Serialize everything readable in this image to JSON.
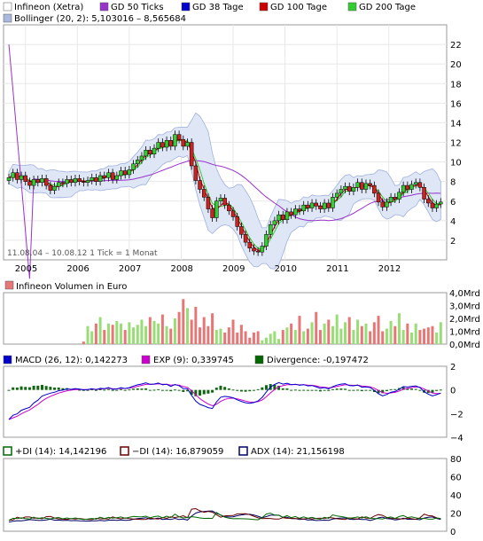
{
  "legend_main": [
    {
      "label": "Infineon (Xetra)",
      "color": "#ffffff"
    },
    {
      "label": "GD 50 Ticks",
      "color": "#9933cc"
    },
    {
      "label": "GD 38 Tage",
      "color": "#0000cc"
    },
    {
      "label": "GD 100 Tage",
      "color": "#cc0000"
    },
    {
      "label": "GD 200 Tage",
      "color": "#33cc33"
    }
  ],
  "legend_bollinger": {
    "label": "Bollinger (20, 2): 5,103016 – 8,565684",
    "color": "#aab8dd"
  },
  "info_text": "11.08.04 – 10.08.12   1 Tick = 1 Monat",
  "chart_data": [
    {
      "type": "candlestick",
      "title": "Infineon (Xetra)",
      "ylim": [
        0,
        24
      ],
      "y_ticks": [
        "2",
        "4",
        "6",
        "8",
        "10",
        "12",
        "14",
        "16",
        "18",
        "20",
        "22"
      ],
      "x_ticks": [
        "2005",
        "2006",
        "2007",
        "2008",
        "2009",
        "2010",
        "2011",
        "2012"
      ],
      "close": [
        8.4,
        8.9,
        8.2,
        8.6,
        8.0,
        7.6,
        8.2,
        7.9,
        8.3,
        7.6,
        7.1,
        7.5,
        7.9,
        7.8,
        8.2,
        7.9,
        8.3,
        8.0,
        7.9,
        8.1,
        8.4,
        8.0,
        8.6,
        8.4,
        8.9,
        8.2,
        8.6,
        9.1,
        8.7,
        9.2,
        9.8,
        10.2,
        10.6,
        11.2,
        10.8,
        11.4,
        12.0,
        11.5,
        12.2,
        11.6,
        12.8,
        12.3,
        11.6,
        12.0,
        9.6,
        8.1,
        7.2,
        6.4,
        5.2,
        4.3,
        6.0,
        6.3,
        5.6,
        5.0,
        4.4,
        3.4,
        2.6,
        1.8,
        1.2,
        0.9,
        0.8,
        1.4,
        2.6,
        3.6,
        4.0,
        4.6,
        4.1,
        4.9,
        4.6,
        5.2,
        5.0,
        5.6,
        5.3,
        5.8,
        5.5,
        5.2,
        5.8,
        5.3,
        6.4,
        6.8,
        7.2,
        7.5,
        7.0,
        7.4,
        7.9,
        7.2,
        7.8,
        7.6,
        6.8,
        5.9,
        5.4,
        5.9,
        6.4,
        6.2,
        6.9,
        7.6,
        7.2,
        7.7,
        7.9,
        7.4,
        6.2,
        5.8,
        5.3,
        5.7,
        5.9
      ],
      "volume_ylim": [
        0,
        4
      ],
      "volume_ticks": [
        "0,0Mrd",
        "1,0Mrd",
        "2,0Mrd",
        "3,0Mrd",
        "4,0Mrd"
      ],
      "bollinger_upper": 8.565684,
      "bollinger_lower": 5.103016
    },
    {
      "type": "bar",
      "title": "Infineon Volumen in Euro",
      "ylim": [
        0,
        4
      ],
      "values": [
        0.0,
        0.0,
        0.0,
        0.0,
        0.0,
        0.0,
        0.0,
        0.0,
        0.0,
        0.0,
        0.0,
        0.0,
        0.0,
        0.0,
        0.0,
        0.0,
        0.0,
        0.0,
        0.2,
        1.4,
        1.0,
        1.6,
        2.1,
        1.1,
        1.6,
        1.5,
        1.8,
        1.6,
        1.1,
        1.7,
        1.3,
        1.5,
        1.9,
        1.4,
        2.1,
        1.8,
        1.6,
        2.3,
        1.4,
        1.2,
        2.0,
        2.5,
        3.5,
        2.8,
        1.9,
        2.9,
        1.3,
        2.1,
        1.4,
        2.4,
        1.1,
        1.2,
        0.9,
        1.3,
        1.9,
        0.9,
        1.5,
        1.0,
        0.5,
        0.9,
        1.0,
        0.3,
        0.5,
        0.8,
        1.0,
        0.4,
        1.1,
        1.3,
        1.6,
        1.1,
        2.2,
        1.0,
        1.2,
        1.7,
        2.5,
        1.1,
        1.6,
        1.9,
        1.4,
        2.3,
        1.2,
        1.7,
        2.1,
        1.1,
        1.9,
        1.4,
        1.6,
        1.0,
        1.7,
        2.2,
        1.0,
        1.2,
        1.8,
        1.4,
        2.4,
        1.1,
        1.6,
        0.9,
        1.6,
        1.1,
        1.2,
        1.3,
        1.4,
        0.9,
        1.7
      ],
      "y_ticks": [
        "0,0Mrd",
        "1,0Mrd",
        "2,0Mrd",
        "3,0Mrd",
        "4,0Mrd"
      ]
    },
    {
      "type": "line",
      "title": "MACD",
      "legend": [
        {
          "label": "MACD (26, 12): 0,142273",
          "color": "#0000cc"
        },
        {
          "label": "EXP (9): 0,339745",
          "color": "#cc00cc"
        },
        {
          "label": "Divergence: -0,197472",
          "color": "#006600"
        }
      ],
      "ylim": [
        -4,
        2
      ],
      "y_ticks": [
        "−4",
        "−2",
        "0",
        "2"
      ]
    },
    {
      "type": "line",
      "title": "DMI",
      "legend": [
        {
          "label": "+DI (14): 14,142196",
          "color": "#006600"
        },
        {
          "label": "−DI (14): 16,879059",
          "color": "#660000"
        },
        {
          "label": "ADX (14): 21,156198",
          "color": "#000066"
        }
      ],
      "ylim": [
        0,
        80
      ],
      "y_ticks": [
        "0",
        "20",
        "40",
        "60",
        "80"
      ]
    }
  ]
}
